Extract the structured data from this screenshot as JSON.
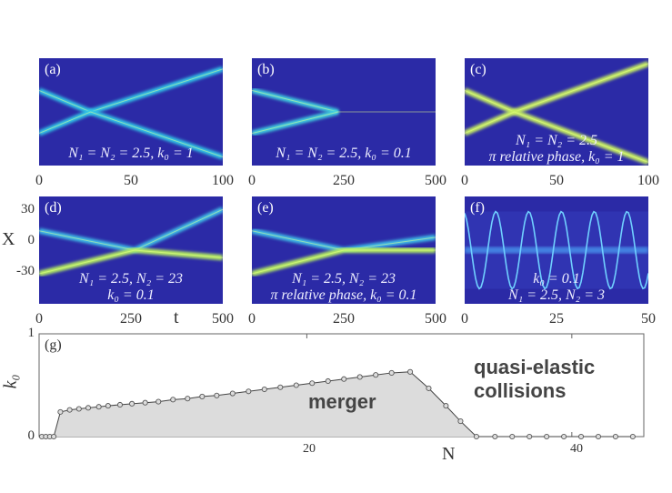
{
  "panels": [
    {
      "label": "(a)",
      "note": [
        "N₁ = N₂ = 2.5, k₀ = 1"
      ],
      "xticks": [
        "0",
        "50",
        "100"
      ]
    },
    {
      "label": "(b)",
      "note": [
        "N₁ = N₂ = 2.5, k₀ = 0.1"
      ],
      "xticks": [
        "0",
        "250",
        "500"
      ]
    },
    {
      "label": "(c)",
      "note": [
        "N₁ = N₂ = 2.5",
        "π relative phase, k₀ = 1"
      ],
      "xticks": [
        "0",
        "50",
        "100"
      ]
    },
    {
      "label": "(d)",
      "note": [
        "N₁ = 2.5, N₂ = 23",
        "k₀ = 0.1"
      ],
      "xticks": [
        "0",
        "250",
        "500"
      ]
    },
    {
      "label": "(e)",
      "note": [
        "N₁ = 2.5, N₂ = 23",
        "π relative phase, k₀ = 0.1"
      ],
      "xticks": [
        "0",
        "250",
        "500"
      ]
    },
    {
      "label": "(f)",
      "note": [
        "k₀ = 0.1",
        "N₁ = 2.5, N₂ = 3"
      ],
      "xticks": [
        "0",
        "25",
        "50"
      ]
    }
  ],
  "row2_yticks": [
    "30",
    "0",
    "-30"
  ],
  "xlabel_top": "t",
  "ylabel_top": "X",
  "chart_data": {
    "type": "area",
    "panel_label": "(g)",
    "xlabel": "N",
    "ylabel": "k₀",
    "xlim": [
      0,
      45
    ],
    "ylim": [
      0,
      1
    ],
    "xticks": [
      "20",
      "40"
    ],
    "yticks": [
      "0",
      "1"
    ],
    "x": [
      0,
      0.3,
      0.6,
      0.9,
      1.4,
      2.1,
      2.8,
      3.5,
      4.3,
      5.0,
      5.9,
      6.8,
      7.8,
      8.8,
      9.9,
      11,
      12.1,
      13.2,
      14.4,
      15.6,
      16.8,
      18,
      19.2,
      20.4,
      21.6,
      22.8,
      24,
      25.2,
      26.4,
      27.8,
      29.2,
      30.5,
      31.6,
      32.8,
      34.2,
      35.5,
      36.8,
      38.1,
      39.4,
      40.7,
      42,
      43.3,
      44.6
    ],
    "y": [
      0,
      0,
      0,
      0,
      0.24,
      0.26,
      0.27,
      0.28,
      0.29,
      0.3,
      0.31,
      0.32,
      0.33,
      0.34,
      0.36,
      0.37,
      0.39,
      0.4,
      0.42,
      0.44,
      0.46,
      0.48,
      0.5,
      0.52,
      0.54,
      0.56,
      0.58,
      0.6,
      0.62,
      0.63,
      0.47,
      0.3,
      0.15,
      0,
      0,
      0,
      0,
      0,
      0,
      0,
      0,
      0,
      0
    ],
    "annotations": [
      "merger",
      "quasi-elastic",
      "collisions"
    ]
  }
}
